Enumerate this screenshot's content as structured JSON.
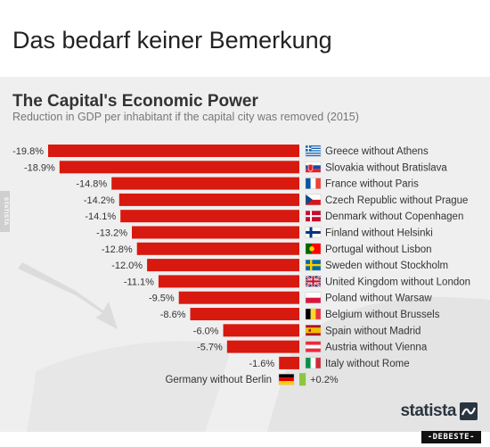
{
  "post_title": "Das bedarf keiner Bemerkung",
  "side_tag": "STATISTA",
  "brand": "statista",
  "watermark": "-DEBESTE-",
  "colors": {
    "bar": "#d8190f",
    "positive_bar": "#8cc63f",
    "background": "#efefef"
  },
  "chart_data": {
    "type": "bar",
    "orientation": "horizontal",
    "title": "The Capital's Economic Power",
    "subtitle": "Reduction in GDP per inhabitant if the capital city was removed (2015)",
    "unit": "%",
    "xlim": [
      -19.8,
      0.2
    ],
    "grid": false,
    "legend": "none",
    "categories": [
      "Greece without Athens",
      "Slovakia without Bratislava",
      "France without Paris",
      "Czech Republic without Prague",
      "Denmark without Copenhagen",
      "Finland without Helsinki",
      "Portugal without Lisbon",
      "Sweden without Stockholm",
      "United Kingdom without London",
      "Poland without Warsaw",
      "Belgium without Brussels",
      "Spain without Madrid",
      "Austria without Vienna",
      "Italy without Rome",
      "Germany without Berlin"
    ],
    "values": [
      -19.8,
      -18.9,
      -14.8,
      -14.2,
      -14.1,
      -13.2,
      -12.8,
      -12.0,
      -11.1,
      -9.5,
      -8.6,
      -6.0,
      -5.7,
      -1.6,
      0.2
    ],
    "value_labels": [
      "-19.8%",
      "-18.9%",
      "-14.8%",
      "-14.2%",
      "-14.1%",
      "-13.2%",
      "-12.8%",
      "-12.0%",
      "-11.1%",
      "-9.5%",
      "-8.6%",
      "-6.0%",
      "-5.7%",
      "-1.6%",
      "+0.2%"
    ],
    "flags": [
      "greece-flag-icon",
      "slovakia-flag-icon",
      "france-flag-icon",
      "czech-republic-flag-icon",
      "denmark-flag-icon",
      "finland-flag-icon",
      "portugal-flag-icon",
      "sweden-flag-icon",
      "united-kingdom-flag-icon",
      "poland-flag-icon",
      "belgium-flag-icon",
      "spain-flag-icon",
      "austria-flag-icon",
      "italy-flag-icon",
      "germany-flag-icon"
    ]
  }
}
